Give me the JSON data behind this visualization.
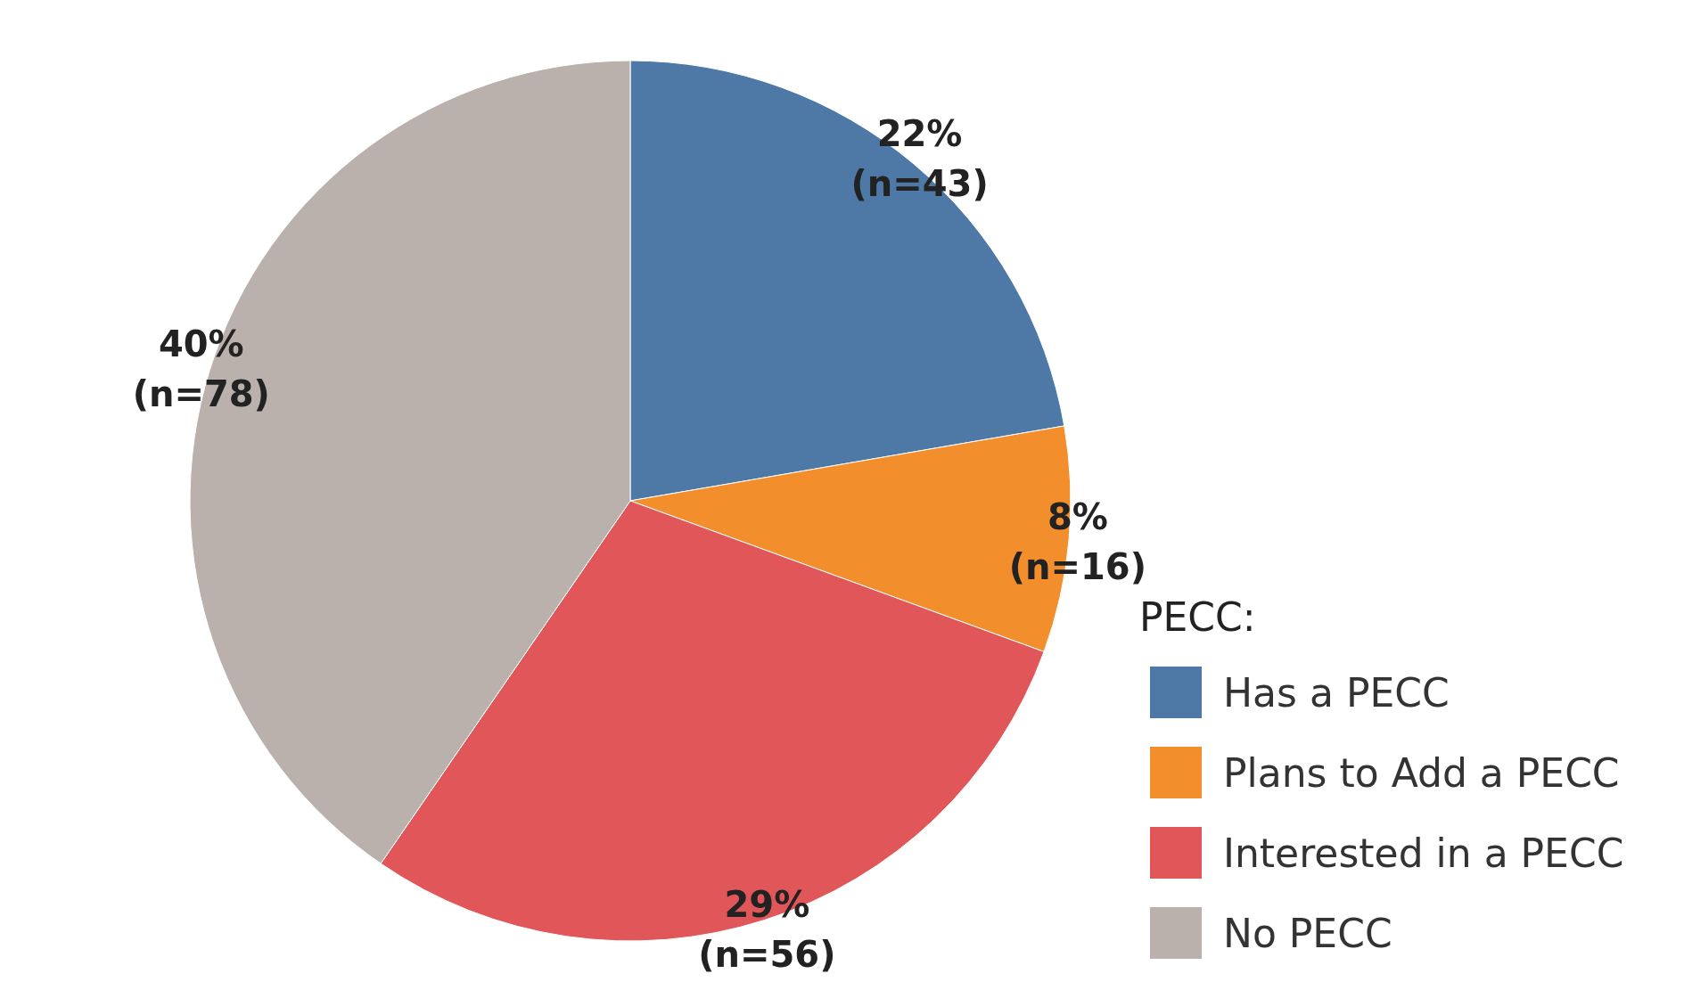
{
  "chart_data": {
    "type": "pie",
    "legend_title": "PECC:",
    "categories": [
      "Has a PECC",
      "Plans to Add a PECC",
      "Interested in a PECC",
      "No PECC"
    ],
    "values": [
      43,
      16,
      56,
      78
    ],
    "colors": [
      "#4e79a7",
      "#f28e2b",
      "#e15759",
      "#bab0ac"
    ],
    "value_labels": [
      "22%\n(n=43)",
      "8%\n(n=16)",
      "29%\n(n=56)",
      "40%\n(n=78)"
    ],
    "legend": "bottom right"
  }
}
